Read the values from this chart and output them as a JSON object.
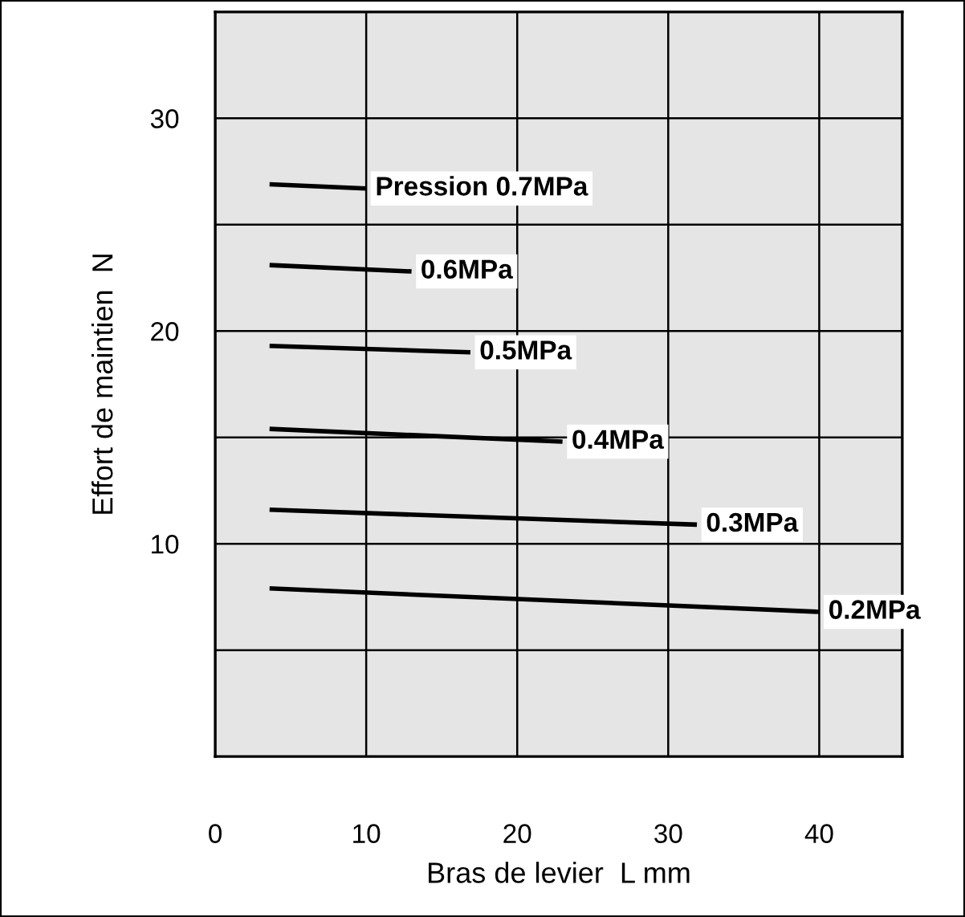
{
  "chart_data": {
    "type": "line",
    "xlabel": "Bras de levier  L mm",
    "ylabel": "Effort de maintien  N",
    "xlim": [
      0,
      45.5
    ],
    "ylim": [
      0,
      35
    ],
    "xticks": [
      0,
      10,
      20,
      30,
      40
    ],
    "yticks": [
      {
        "value": 5,
        "label": null
      },
      10,
      {
        "value": 15,
        "label": null
      },
      20,
      {
        "value": 25,
        "label": null
      },
      30
    ],
    "grid": true,
    "legend": false,
    "marker": "none",
    "line_style": "solid",
    "series": [
      {
        "name": "Pression 0.7MPa",
        "color": "#000000",
        "x": [
          3.6,
          10
        ],
        "values": [
          26.9,
          26.7
        ]
      },
      {
        "name": "0.6MPa",
        "color": "#000000",
        "x": [
          3.6,
          13.0
        ],
        "values": [
          23.1,
          22.8
        ]
      },
      {
        "name": "0.5MPa",
        "color": "#000000",
        "x": [
          3.6,
          16.9
        ],
        "values": [
          19.3,
          19.0
        ]
      },
      {
        "name": "0.4MPa",
        "color": "#000000",
        "x": [
          3.6,
          23.0
        ],
        "values": [
          15.4,
          14.8
        ]
      },
      {
        "name": "0.3MPa",
        "color": "#000000",
        "x": [
          3.6,
          31.9
        ],
        "values": [
          11.6,
          10.9
        ]
      },
      {
        "name": "0.2MPa",
        "color": "#000000",
        "x": [
          3.6,
          40.0
        ],
        "values": [
          7.9,
          6.8
        ]
      }
    ]
  }
}
